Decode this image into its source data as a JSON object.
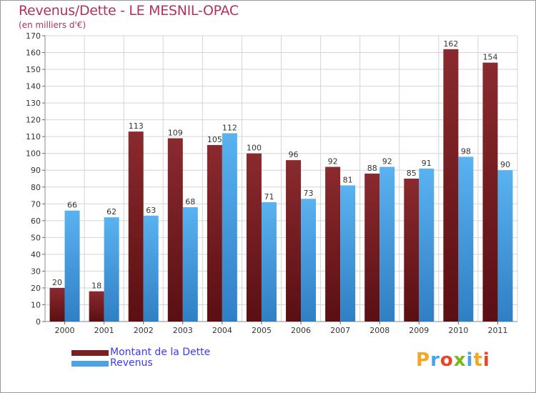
{
  "chart_data": {
    "type": "bar",
    "title": "Revenus/Dette - LE MESNIL-OPAC",
    "subtitle": "(en milliers d'€)",
    "categories": [
      "2000",
      "2001",
      "2002",
      "2003",
      "2004",
      "2005",
      "2006",
      "2007",
      "2008",
      "2009",
      "2010",
      "2011"
    ],
    "series": [
      {
        "name": "Montant de la Dette",
        "color": "#7a1f24",
        "values": [
          20,
          18,
          113,
          109,
          105,
          100,
          96,
          92,
          88,
          85,
          162,
          154
        ]
      },
      {
        "name": "Revenus",
        "color": "#4aa3e8",
        "values": [
          66,
          62,
          63,
          68,
          112,
          71,
          73,
          81,
          92,
          91,
          98,
          90
        ]
      }
    ],
    "ylim": [
      0,
      170
    ],
    "yticks": [
      0,
      10,
      20,
      30,
      40,
      50,
      60,
      70,
      80,
      90,
      100,
      110,
      120,
      130,
      140,
      150,
      160,
      170
    ],
    "grid": true,
    "legend_position": "bottom-left"
  },
  "logo": {
    "text": "Proxiti",
    "colors": [
      "#f5a623",
      "#4aa3e8",
      "#e8452c",
      "#7ab51d",
      "#4aa3e8",
      "#f5a623",
      "#e8452c"
    ]
  }
}
